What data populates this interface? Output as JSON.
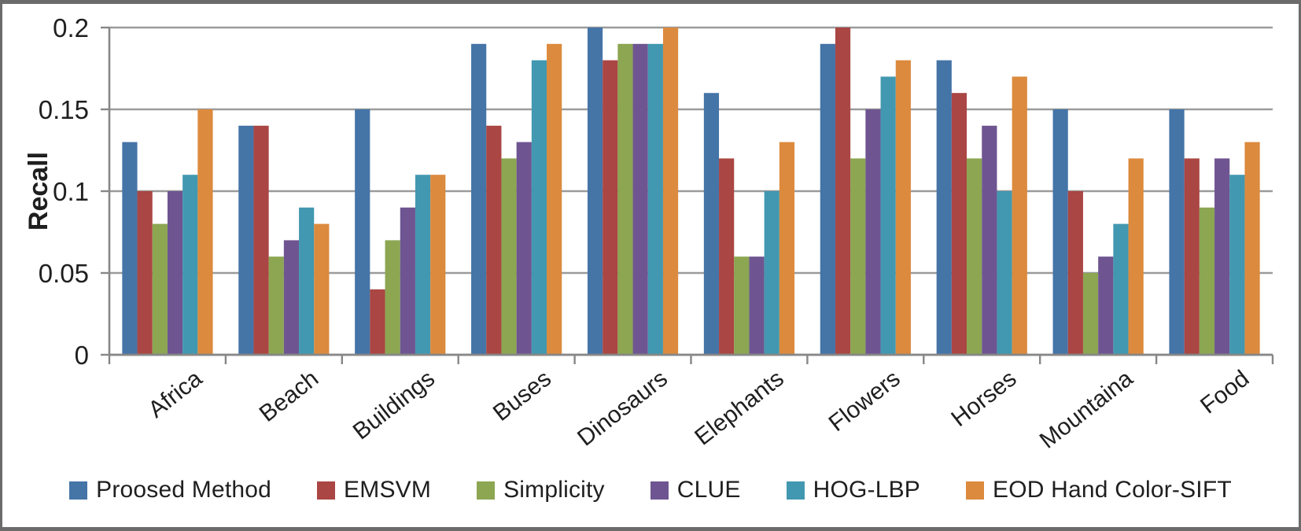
{
  "chart_data": {
    "type": "bar",
    "title": "",
    "xlabel": "",
    "ylabel": "Recall",
    "ylim": [
      0,
      0.2
    ],
    "grid": true,
    "legend_position": "bottom",
    "yticks": [
      {
        "value": 0,
        "label": "0"
      },
      {
        "value": 0.05,
        "label": "0.05"
      },
      {
        "value": 0.1,
        "label": "0.1"
      },
      {
        "value": 0.15,
        "label": "0.15"
      },
      {
        "value": 0.2,
        "label": "0.2"
      }
    ],
    "categories": [
      "Africa",
      "Beach",
      "Buildings",
      "Buses",
      "Dinosaurs",
      "Elephants",
      "Flowers",
      "Horses",
      "Mountaina",
      "Food"
    ],
    "series": [
      {
        "name": "Proosed Method",
        "color": "#4574A7",
        "values": [
          0.13,
          0.14,
          0.15,
          0.19,
          0.2,
          0.16,
          0.19,
          0.18,
          0.15,
          0.15
        ]
      },
      {
        "name": "EMSVM",
        "color": "#AA4643",
        "values": [
          0.1,
          0.14,
          0.04,
          0.14,
          0.18,
          0.12,
          0.2,
          0.16,
          0.1,
          0.12
        ]
      },
      {
        "name": "Simplicity",
        "color": "#8CA652",
        "values": [
          0.08,
          0.06,
          0.07,
          0.12,
          0.19,
          0.06,
          0.12,
          0.12,
          0.05,
          0.09
        ]
      },
      {
        "name": "CLUE",
        "color": "#6E5591",
        "values": [
          0.1,
          0.07,
          0.09,
          0.13,
          0.19,
          0.06,
          0.15,
          0.14,
          0.06,
          0.12
        ]
      },
      {
        "name": "HOG-LBP",
        "color": "#4298B0",
        "values": [
          0.11,
          0.09,
          0.11,
          0.18,
          0.19,
          0.1,
          0.17,
          0.1,
          0.08,
          0.11
        ]
      },
      {
        "name": "EOD Hand Color-SIFT",
        "color": "#DC8A3D",
        "values": [
          0.15,
          0.08,
          0.11,
          0.19,
          0.2,
          0.13,
          0.18,
          0.17,
          0.12,
          0.13
        ]
      }
    ],
    "colors": {
      "grid": "#9B9B9B",
      "axis": "#878787",
      "text": "#1F1F1F",
      "background": "#FFFFFF",
      "frame_border": "#6B6B6B"
    }
  }
}
